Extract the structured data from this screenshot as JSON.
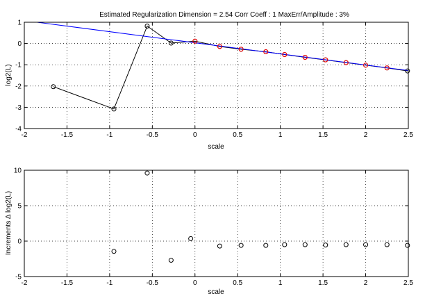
{
  "figure": {
    "title": "Estimated Regularization Dimension = 2.54    Corr Coeff : 1    MaxErr/Amplitude : 3%"
  },
  "chart_data": [
    {
      "type": "line",
      "xlabel": "scale",
      "ylabel": "log2(L)",
      "xlim": [
        -2,
        2.5
      ],
      "ylim": [
        -4,
        1
      ],
      "xticks": [
        "-2",
        "-1.5",
        "-1",
        "-0.5",
        "0",
        "0.5",
        "1",
        "1.5",
        "2",
        "2.5"
      ],
      "yticks": [
        "-4",
        "-3",
        "-2",
        "-1",
        "0",
        "1"
      ],
      "grid": true,
      "data_curve": {
        "color": "#000000",
        "x": [
          -1.66,
          -0.95,
          -0.56,
          -0.28,
          0.0,
          0.29,
          0.54,
          0.83,
          1.05,
          1.29,
          1.53,
          1.77,
          2.0,
          2.25,
          2.49
        ],
        "y": [
          -2.03,
          -3.08,
          0.82,
          0.02,
          0.11,
          -0.14,
          -0.27,
          -0.39,
          -0.52,
          -0.65,
          -0.77,
          -0.9,
          -1.02,
          -1.15,
          -1.29
        ]
      },
      "fit_points": {
        "color": "#ff0000",
        "x": [
          0.0,
          0.29,
          0.54,
          0.83,
          1.05,
          1.29,
          1.53,
          1.77,
          2.0,
          2.25
        ],
        "y": [
          0.11,
          -0.14,
          -0.27,
          -0.39,
          -0.52,
          -0.65,
          -0.77,
          -0.9,
          -1.02,
          -1.15
        ]
      },
      "fit_line": {
        "color": "#0000ff",
        "x": [
          -1.85,
          2.5
        ],
        "y": [
          1.0,
          -1.27
        ]
      }
    },
    {
      "type": "scatter",
      "xlabel": "scale",
      "ylabel": "Increments ∆ log2(L)",
      "xlim": [
        -2,
        2.5
      ],
      "ylim": [
        -5,
        10
      ],
      "xticks": [
        "-2",
        "-1.5",
        "-1",
        "-0.5",
        "0",
        "0.5",
        "1",
        "1.5",
        "2",
        "2.5"
      ],
      "yticks": [
        "-5",
        "0",
        "5",
        "10"
      ],
      "grid": true,
      "points": {
        "color": "#000000",
        "x": [
          -0.95,
          -0.56,
          -0.28,
          -0.05,
          0.29,
          0.54,
          0.83,
          1.05,
          1.29,
          1.53,
          1.77,
          2.0,
          2.25,
          2.49
        ],
        "y": [
          -1.45,
          9.6,
          -2.7,
          0.35,
          -0.7,
          -0.6,
          -0.6,
          -0.5,
          -0.5,
          -0.55,
          -0.5,
          -0.5,
          -0.5,
          -0.6
        ]
      }
    }
  ]
}
